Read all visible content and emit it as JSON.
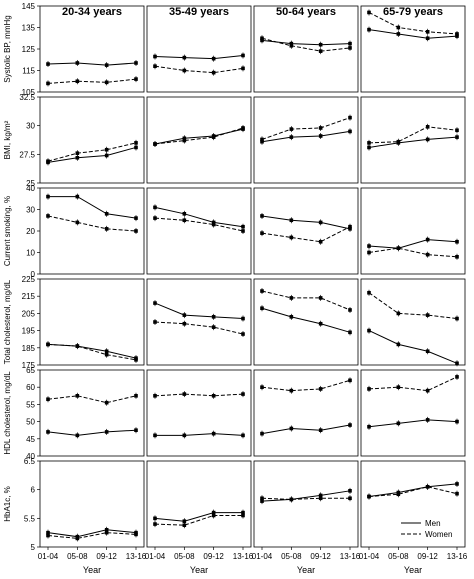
{
  "chart_data": {
    "type": "line",
    "layout": "grid 6 rows x 4 columns of small-multiple line panels",
    "columns": [
      "20-34 years",
      "35-49 years",
      "50-64 years",
      "65-79 years"
    ],
    "x": [
      "01-04",
      "05-08",
      "09-12",
      "13-16"
    ],
    "xlabel": "Year",
    "legend": {
      "placement": "bottom-right panel",
      "entries": [
        "Men",
        "Women"
      ]
    },
    "series_styles": {
      "Men": "solid",
      "Women": "dashed"
    },
    "grid": false,
    "rows": [
      {
        "ylabel": "Systolic BP, mmHg",
        "ylim": [
          105,
          145
        ],
        "yticks": [
          "105",
          "115",
          "125",
          "135",
          "145"
        ],
        "panels": [
          {
            "series": [
              {
                "name": "Men",
                "values": [
                  118,
                  118.5,
                  117.5,
                  118.5
                ]
              },
              {
                "name": "Women",
                "values": [
                  109,
                  110,
                  109.5,
                  111
                ]
              }
            ]
          },
          {
            "series": [
              {
                "name": "Men",
                "values": [
                  121.5,
                  121,
                  120.5,
                  122
                ]
              },
              {
                "name": "Women",
                "values": [
                  117,
                  115,
                  114,
                  116
                ]
              }
            ]
          },
          {
            "series": [
              {
                "name": "Men",
                "values": [
                  129,
                  127.5,
                  127,
                  127.5
                ]
              },
              {
                "name": "Women",
                "values": [
                  130,
                  126.5,
                  124,
                  125.5
                ]
              }
            ]
          },
          {
            "series": [
              {
                "name": "Men",
                "values": [
                  134,
                  132,
                  130,
                  131
                ]
              },
              {
                "name": "Women",
                "values": [
                  142,
                  135,
                  133,
                  132
                ]
              }
            ]
          }
        ]
      },
      {
        "ylabel": "BMI, kg/m²",
        "ylim": [
          25,
          32.5
        ],
        "yticks": [
          "25",
          "27.5",
          "30",
          "32.5"
        ],
        "panels": [
          {
            "series": [
              {
                "name": "Men",
                "values": [
                  26.8,
                  27.2,
                  27.4,
                  28.1
                ]
              },
              {
                "name": "Women",
                "values": [
                  26.9,
                  27.6,
                  27.9,
                  28.5
                ]
              }
            ]
          },
          {
            "series": [
              {
                "name": "Men",
                "values": [
                  28.4,
                  28.9,
                  29.1,
                  29.7
                ]
              },
              {
                "name": "Women",
                "values": [
                  28.4,
                  28.7,
                  29.0,
                  29.8
                ]
              }
            ]
          },
          {
            "series": [
              {
                "name": "Men",
                "values": [
                  28.6,
                  29.0,
                  29.1,
                  29.5
                ]
              },
              {
                "name": "Women",
                "values": [
                  28.8,
                  29.7,
                  29.8,
                  30.7
                ]
              }
            ]
          },
          {
            "series": [
              {
                "name": "Men",
                "values": [
                  28.1,
                  28.5,
                  28.8,
                  29.0
                ]
              },
              {
                "name": "Women",
                "values": [
                  28.5,
                  28.6,
                  29.9,
                  29.6
                ]
              }
            ]
          }
        ]
      },
      {
        "ylabel": "Current smoking, %",
        "ylim": [
          0,
          40
        ],
        "yticks": [
          "0",
          "10",
          "20",
          "30",
          "40"
        ],
        "panels": [
          {
            "series": [
              {
                "name": "Men",
                "values": [
                  36,
                  36,
                  28,
                  26
                ]
              },
              {
                "name": "Women",
                "values": [
                  27,
                  24,
                  21,
                  20
                ]
              }
            ]
          },
          {
            "series": [
              {
                "name": "Men",
                "values": [
                  31,
                  28,
                  24,
                  22
                ]
              },
              {
                "name": "Women",
                "values": [
                  26,
                  25,
                  23,
                  20
                ]
              }
            ]
          },
          {
            "series": [
              {
                "name": "Men",
                "values": [
                  27,
                  25,
                  24,
                  21
                ]
              },
              {
                "name": "Women",
                "values": [
                  19,
                  17,
                  15,
                  22
                ]
              }
            ]
          },
          {
            "series": [
              {
                "name": "Men",
                "values": [
                  13,
                  12,
                  16,
                  15
                ]
              },
              {
                "name": "Women",
                "values": [
                  10,
                  12,
                  9,
                  8
                ]
              }
            ]
          }
        ]
      },
      {
        "ylabel": "Total cholesterol, mg/dL",
        "ylim": [
          175,
          225
        ],
        "yticks": [
          "175",
          "185",
          "195",
          "205",
          "215",
          "225"
        ],
        "panels": [
          {
            "series": [
              {
                "name": "Men",
                "values": [
                  187,
                  186,
                  183,
                  179
                ]
              },
              {
                "name": "Women",
                "values": [
                  187,
                  186,
                  181,
                  178
                ]
              }
            ]
          },
          {
            "series": [
              {
                "name": "Men",
                "values": [
                  211,
                  204,
                  203,
                  202
                ]
              },
              {
                "name": "Women",
                "values": [
                  200,
                  199,
                  197,
                  193
                ]
              }
            ]
          },
          {
            "series": [
              {
                "name": "Men",
                "values": [
                  208,
                  203,
                  199,
                  194
                ]
              },
              {
                "name": "Women",
                "values": [
                  218,
                  214,
                  214,
                  207
                ]
              }
            ]
          },
          {
            "series": [
              {
                "name": "Men",
                "values": [
                  195,
                  187,
                  183,
                  176
                ]
              },
              {
                "name": "Women",
                "values": [
                  217,
                  205,
                  204,
                  202
                ]
              }
            ]
          }
        ]
      },
      {
        "ylabel": "HDL cholesterol, mg/dL",
        "ylim": [
          40,
          65
        ],
        "yticks": [
          "40",
          "45",
          "50",
          "55",
          "60",
          "65"
        ],
        "panels": [
          {
            "series": [
              {
                "name": "Men",
                "values": [
                  47,
                  46,
                  47,
                  47.5
                ]
              },
              {
                "name": "Women",
                "values": [
                  56.5,
                  57.5,
                  55.5,
                  57.5
                ]
              }
            ]
          },
          {
            "series": [
              {
                "name": "Men",
                "values": [
                  46,
                  46,
                  46.5,
                  46
                ]
              },
              {
                "name": "Women",
                "values": [
                  57.5,
                  58,
                  57.5,
                  58
                ]
              }
            ]
          },
          {
            "series": [
              {
                "name": "Men",
                "values": [
                  46.5,
                  48,
                  47.5,
                  49
                ]
              },
              {
                "name": "Women",
                "values": [
                  60,
                  59,
                  59.5,
                  62
                ]
              }
            ]
          },
          {
            "series": [
              {
                "name": "Men",
                "values": [
                  48.5,
                  49.5,
                  50.5,
                  50
                ]
              },
              {
                "name": "Women",
                "values": [
                  59.5,
                  60,
                  59,
                  63
                ]
              }
            ]
          }
        ]
      },
      {
        "ylabel": "HbA1c, %",
        "ylim": [
          5,
          6.5
        ],
        "yticks": [
          "5",
          "5.5",
          "6",
          "6.5"
        ],
        "panels": [
          {
            "series": [
              {
                "name": "Men",
                "values": [
                  5.25,
                  5.18,
                  5.3,
                  5.25
                ]
              },
              {
                "name": "Women",
                "values": [
                  5.2,
                  5.15,
                  5.25,
                  5.22
                ]
              }
            ]
          },
          {
            "series": [
              {
                "name": "Men",
                "values": [
                  5.5,
                  5.45,
                  5.6,
                  5.6
                ]
              },
              {
                "name": "Women",
                "values": [
                  5.4,
                  5.38,
                  5.55,
                  5.55
                ]
              }
            ]
          },
          {
            "series": [
              {
                "name": "Men",
                "values": [
                  5.8,
                  5.83,
                  5.9,
                  5.98
                ]
              },
              {
                "name": "Women",
                "values": [
                  5.85,
                  5.83,
                  5.85,
                  5.85
                ]
              }
            ]
          },
          {
            "series": [
              {
                "name": "Men",
                "values": [
                  5.88,
                  5.95,
                  6.05,
                  6.1
                ]
              },
              {
                "name": "Women",
                "values": [
                  5.88,
                  5.92,
                  6.05,
                  5.93
                ]
              }
            ]
          }
        ]
      }
    ]
  }
}
